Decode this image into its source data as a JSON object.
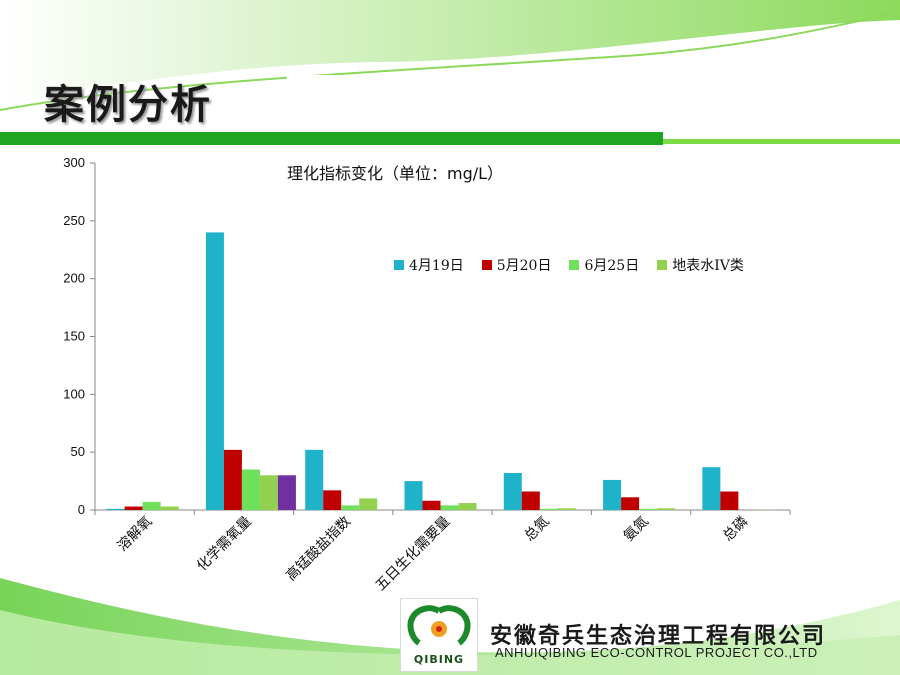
{
  "slide": {
    "title": "案例分析",
    "company_name_cn": "安徽奇兵生态治理工程有限公司",
    "company_name_en": "ANHUIQIBING ECO-CONTROL  PROJECT  CO.,LTD",
    "logo_text": "QIBING"
  },
  "colors": {
    "accent_dark_green": "#1fa51f",
    "accent_light_green": "#7ddc45"
  },
  "chart_data": {
    "type": "bar",
    "title": "理化指标变化（单位：mg/L）",
    "xlabel": "",
    "ylabel": "",
    "ylim": [
      0,
      300
    ],
    "yticks": [
      0,
      50,
      100,
      150,
      200,
      250,
      300
    ],
    "grid": false,
    "legend_position": "top-right",
    "categories": [
      "溶解氧",
      "化学需氧量",
      "高锰酸盐指数",
      "五日生化需要量",
      "总氮",
      "氨氮",
      "总磷"
    ],
    "series": [
      {
        "name": "4月19日",
        "color": "#1fb3c9",
        "values": [
          1,
          240,
          52,
          25,
          32,
          26,
          37
        ]
      },
      {
        "name": "5月20日",
        "color": "#c00000",
        "values": [
          3,
          52,
          17,
          8,
          16,
          11,
          16
        ]
      },
      {
        "name": "6月25日",
        "color": "#6ee05a",
        "values": [
          7,
          35,
          4,
          4,
          1,
          1,
          0
        ]
      },
      {
        "name": "地表水IV类",
        "color": "#92d050",
        "values": [
          3,
          30,
          10,
          6,
          1.5,
          1.5,
          0.3
        ]
      }
    ],
    "extra_bars": [
      {
        "category_index": 1,
        "color": "#7030a0",
        "value": 30
      }
    ]
  }
}
